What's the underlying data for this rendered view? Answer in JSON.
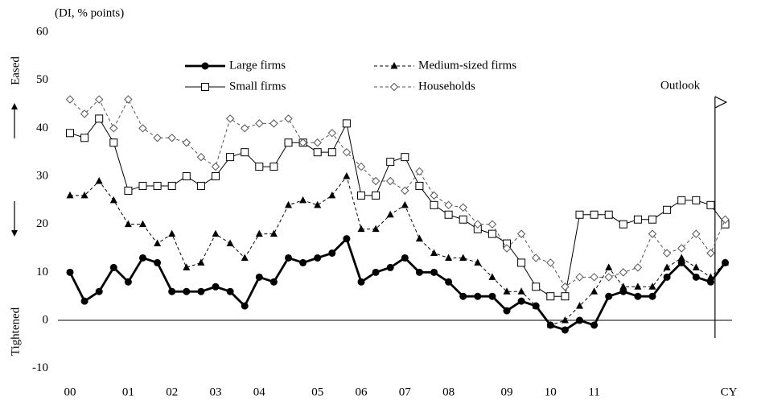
{
  "chart_data": {
    "type": "line",
    "y_label": "(DI, % points)",
    "x_label": "CY",
    "up_label": "Eased",
    "down_label": "Tightened",
    "annotation": "Outlook",
    "categories": [
      "00",
      null,
      null,
      null,
      "01",
      null,
      null,
      "02",
      null,
      null,
      "03",
      null,
      null,
      "04",
      null,
      null,
      null,
      "05",
      null,
      null,
      "06",
      null,
      null,
      "07",
      null,
      null,
      "08",
      null,
      null,
      null,
      "09",
      null,
      null,
      "10",
      null,
      null,
      "11",
      null,
      null,
      null,
      null,
      null,
      null,
      null,
      null,
      null
    ],
    "ylim": [
      -10,
      60
    ],
    "yticks": [
      -10,
      0,
      10,
      20,
      30,
      40,
      50,
      60
    ],
    "series": [
      {
        "name": "Large firms",
        "color": "#000000",
        "marker": "circle",
        "dashed": false,
        "values": [
          10,
          4,
          6,
          11,
          8,
          13,
          12,
          6,
          6,
          6,
          7,
          6,
          3,
          9,
          8,
          13,
          12,
          13,
          14,
          17,
          8,
          10,
          11,
          13,
          10,
          10,
          8,
          5,
          5,
          5,
          2,
          4,
          3,
          -1,
          -2,
          0,
          -1,
          5,
          6,
          5,
          5,
          9,
          12,
          9,
          8,
          12
        ]
      },
      {
        "name": "Medium-sized firms",
        "color": "#000000",
        "marker": "triangle",
        "dashed": true,
        "values": [
          26,
          26,
          29,
          25,
          20,
          20,
          16,
          18,
          11,
          12,
          18,
          16,
          13,
          18,
          18,
          24,
          25,
          24,
          26,
          30,
          19,
          19,
          22,
          24,
          17,
          14,
          13,
          13,
          12,
          9,
          6,
          6,
          3,
          -1,
          0,
          3,
          6,
          11,
          7,
          7,
          7,
          11,
          13,
          11,
          9,
          12
        ]
      },
      {
        "name": "Small firms",
        "color": "#000000",
        "marker": "square",
        "dashed": false,
        "values": [
          39,
          38,
          42,
          37,
          27,
          28,
          28,
          28,
          30,
          28,
          30,
          34,
          35,
          32,
          32,
          37,
          37,
          35,
          35,
          41,
          26,
          26,
          33,
          34,
          28,
          24,
          22,
          21,
          19,
          18,
          16,
          12,
          7,
          5,
          5,
          22,
          22,
          22,
          20,
          21,
          21,
          23,
          25,
          25,
          24,
          20
        ]
      },
      {
        "name": "Households",
        "color": "#555555",
        "marker": "diamond",
        "dashed": true,
        "values": [
          46,
          43,
          46,
          40,
          46,
          40,
          38,
          38,
          37,
          34,
          32,
          42,
          40,
          41,
          41,
          42,
          37,
          37,
          39,
          35,
          32,
          29,
          29,
          27,
          31,
          26,
          24,
          23.5,
          20,
          20,
          15,
          18,
          13,
          12,
          7,
          9,
          9,
          9,
          10,
          11,
          18,
          14,
          15,
          18,
          14,
          21
        ]
      }
    ]
  }
}
